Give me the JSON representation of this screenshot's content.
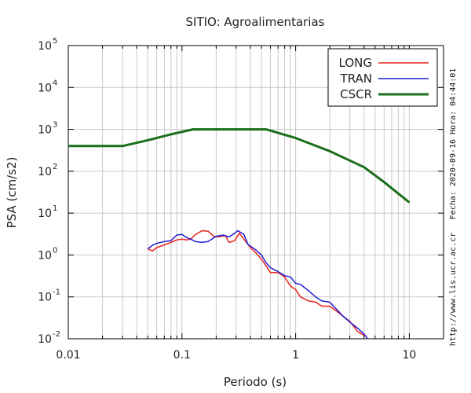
{
  "chart_data": {
    "type": "line",
    "title": "SITIO: Agroalimentarias",
    "xlabel": "Periodo (s)",
    "ylabel": "PSA (cm/s2)",
    "xscale": "log",
    "yscale": "log",
    "xlim": [
      0.01,
      20
    ],
    "ylim": [
      0.01,
      100000
    ],
    "x_ticks": [
      {
        "value": 0.01,
        "label": "0.01"
      },
      {
        "value": 0.1,
        "label": "0.1"
      },
      {
        "value": 1,
        "label": "1"
      },
      {
        "value": 10,
        "label": "10"
      }
    ],
    "y_ticks": [
      {
        "value": 0.01,
        "base": "10",
        "exp": "-2"
      },
      {
        "value": 0.1,
        "base": "10",
        "exp": "-1"
      },
      {
        "value": 1,
        "base": "10",
        "exp": "0"
      },
      {
        "value": 10,
        "base": "10",
        "exp": "1"
      },
      {
        "value": 100,
        "base": "10",
        "exp": "2"
      },
      {
        "value": 1000,
        "base": "10",
        "exp": "3"
      },
      {
        "value": 10000,
        "base": "10",
        "exp": "4"
      },
      {
        "value": 100000,
        "base": "10",
        "exp": "5"
      }
    ],
    "grid": true,
    "legend_position": "top-right",
    "series": [
      {
        "name": "LONG",
        "color": "#e8221c",
        "points": [
          [
            0.05,
            1.4
          ],
          [
            0.055,
            1.25
          ],
          [
            0.06,
            1.5
          ],
          [
            0.07,
            1.75
          ],
          [
            0.08,
            2.0
          ],
          [
            0.09,
            2.3
          ],
          [
            0.1,
            2.4
          ],
          [
            0.11,
            2.3
          ],
          [
            0.12,
            2.4
          ],
          [
            0.13,
            3.0
          ],
          [
            0.15,
            3.8
          ],
          [
            0.17,
            3.7
          ],
          [
            0.19,
            2.8
          ],
          [
            0.21,
            2.7
          ],
          [
            0.24,
            2.9
          ],
          [
            0.26,
            2.0
          ],
          [
            0.29,
            2.2
          ],
          [
            0.32,
            3.3
          ],
          [
            0.35,
            2.4
          ],
          [
            0.4,
            1.5
          ],
          [
            0.45,
            1.1
          ],
          [
            0.5,
            0.8
          ],
          [
            0.55,
            0.55
          ],
          [
            0.6,
            0.38
          ],
          [
            0.7,
            0.38
          ],
          [
            0.8,
            0.3
          ],
          [
            0.9,
            0.18
          ],
          [
            1.0,
            0.15
          ],
          [
            1.1,
            0.1
          ],
          [
            1.3,
            0.08
          ],
          [
            1.5,
            0.075
          ],
          [
            1.7,
            0.06
          ],
          [
            2.0,
            0.06
          ],
          [
            2.3,
            0.045
          ],
          [
            2.6,
            0.035
          ],
          [
            3.0,
            0.026
          ],
          [
            3.5,
            0.015
          ],
          [
            4.0,
            0.012
          ]
        ]
      },
      {
        "name": "TRAN",
        "color": "#1f1fd6",
        "points": [
          [
            0.05,
            1.4
          ],
          [
            0.055,
            1.7
          ],
          [
            0.06,
            1.9
          ],
          [
            0.07,
            2.1
          ],
          [
            0.08,
            2.2
          ],
          [
            0.09,
            3.0
          ],
          [
            0.1,
            3.1
          ],
          [
            0.11,
            2.6
          ],
          [
            0.12,
            2.4
          ],
          [
            0.13,
            2.1
          ],
          [
            0.15,
            2.0
          ],
          [
            0.17,
            2.1
          ],
          [
            0.2,
            2.8
          ],
          [
            0.23,
            3.0
          ],
          [
            0.26,
            2.7
          ],
          [
            0.29,
            3.3
          ],
          [
            0.31,
            3.8
          ],
          [
            0.35,
            3.1
          ],
          [
            0.38,
            1.8
          ],
          [
            0.45,
            1.3
          ],
          [
            0.5,
            1.0
          ],
          [
            0.55,
            0.65
          ],
          [
            0.6,
            0.5
          ],
          [
            0.7,
            0.4
          ],
          [
            0.8,
            0.32
          ],
          [
            0.9,
            0.3
          ],
          [
            1.0,
            0.21
          ],
          [
            1.1,
            0.2
          ],
          [
            1.3,
            0.14
          ],
          [
            1.5,
            0.1
          ],
          [
            1.7,
            0.08
          ],
          [
            2.0,
            0.075
          ],
          [
            2.3,
            0.05
          ],
          [
            2.6,
            0.035
          ],
          [
            3.0,
            0.025
          ],
          [
            3.5,
            0.018
          ],
          [
            4.0,
            0.013
          ],
          [
            4.3,
            0.01
          ]
        ]
      },
      {
        "name": "CSCR",
        "color": "#1a6e1a",
        "points": [
          [
            0.01,
            400
          ],
          [
            0.03,
            400
          ],
          [
            0.05,
            550
          ],
          [
            0.08,
            760
          ],
          [
            0.125,
            1000
          ],
          [
            0.55,
            1000
          ],
          [
            1,
            620
          ],
          [
            2,
            300
          ],
          [
            3,
            180
          ],
          [
            4,
            125
          ],
          [
            6,
            55
          ],
          [
            10,
            18
          ]
        ]
      }
    ]
  },
  "side_text": {
    "timestamp": "Fecha: 2020-09-16 Hora: 04:44:01",
    "url": "http://www.lis.ucr.ac.cr"
  }
}
